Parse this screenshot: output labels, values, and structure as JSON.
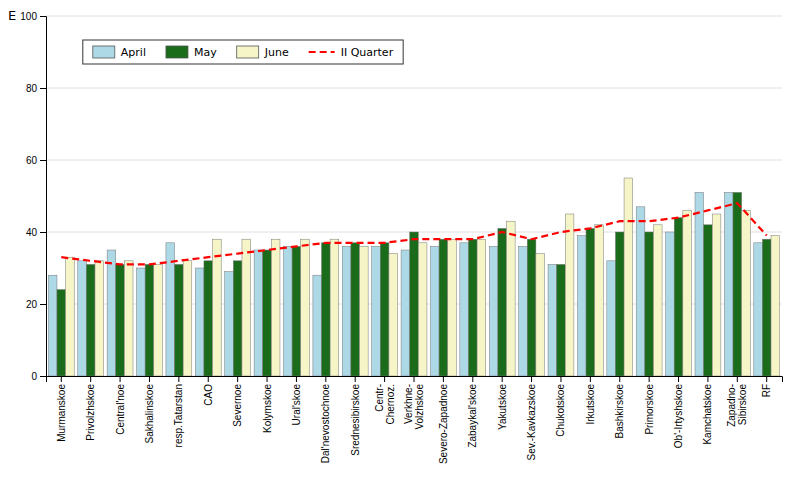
{
  "chart_data": {
    "type": "bar",
    "categories": [
      "Murmanskoe",
      "Privolzhskoe",
      "Central'noe",
      "Sakhalinskoe",
      "resp.Tatarstan",
      "CAO",
      "Severnoe",
      "Kolymskoe",
      "Ural'skoe",
      "Dal'nevostochnoe",
      "Srednesibirskoe",
      "Centr-\nChernoz.",
      "Verkhne-\nVolzhskoe",
      "Severo-Zapadnoe",
      "Zabaykаl'skoe",
      "Yakutskoe",
      "Sev.-Kavkazskoe",
      "Chukotskoe",
      "Irkutskoe",
      "Bashkirskoe",
      "Primorskoe",
      "Ob'-Irtyshskoe",
      "Kamchatskoe",
      "Zapadno-\nSibirskoe",
      "RF"
    ],
    "series": [
      {
        "name": "April",
        "color": "#add8e6",
        "values": [
          28,
          32,
          35,
          30,
          37,
          30,
          29,
          35,
          36,
          28,
          36,
          36,
          35,
          36,
          37,
          36,
          36,
          31,
          39,
          32,
          47,
          40,
          51,
          51,
          37
        ]
      },
      {
        "name": "May",
        "color": "#1a6b1a",
        "values": [
          24,
          31,
          31,
          31,
          31,
          32,
          32,
          35,
          36,
          37,
          37,
          37,
          40,
          38,
          38,
          41,
          38,
          31,
          41,
          40,
          40,
          44,
          42,
          51,
          38
        ]
      },
      {
        "name": "June",
        "color": "#f5f5c8",
        "values": [
          33,
          32,
          32,
          31,
          32,
          38,
          38,
          38,
          38,
          38,
          36,
          34,
          37,
          38,
          38,
          43,
          34,
          45,
          42,
          55,
          42,
          46,
          45,
          46,
          39
        ]
      },
      {
        "name": "II Quarter",
        "type": "line",
        "line_style": "dashed",
        "color": "#ff0000",
        "values": [
          33,
          32,
          31,
          31,
          32,
          33,
          34,
          35,
          36,
          37,
          37,
          37,
          38,
          38,
          38,
          40,
          38,
          40,
          41,
          43,
          43,
          44,
          46,
          48,
          39
        ]
      }
    ],
    "ylabel": "E",
    "ylim": [
      0,
      100
    ],
    "yticks": [
      0,
      20,
      40,
      60,
      80,
      100
    ],
    "grid": true,
    "legend": "upper left"
  }
}
